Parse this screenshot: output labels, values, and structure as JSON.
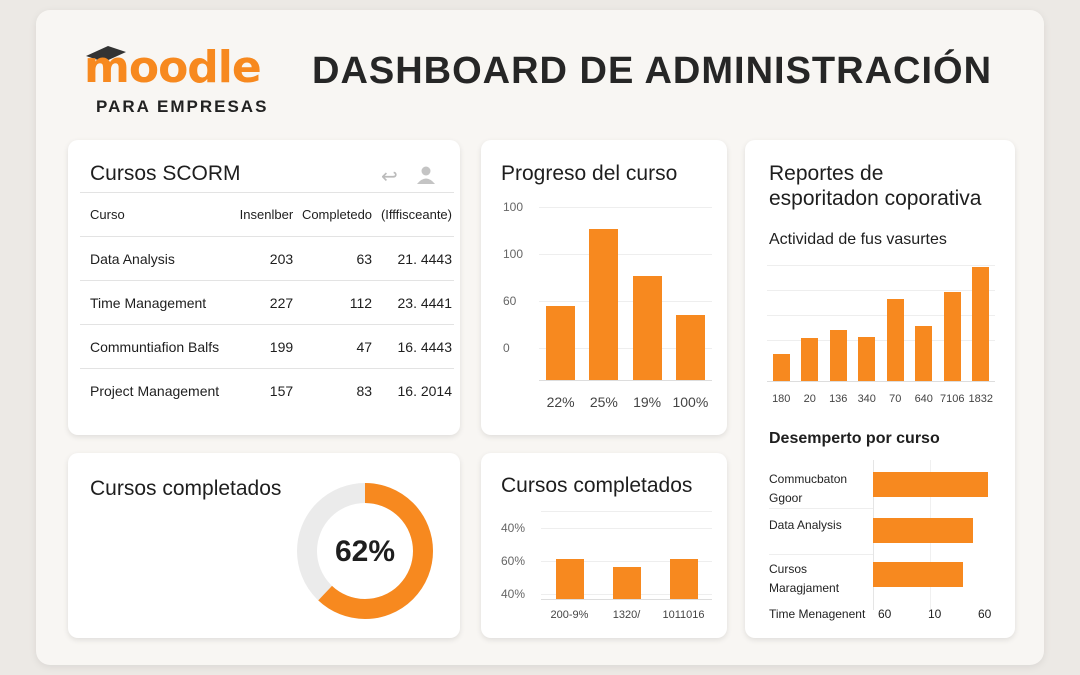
{
  "header": {
    "logo_text": "moodle",
    "logo_subtitle": "PARA EMPRESAS",
    "title": "DASHBOARD DE ADMINISTRACIÓN"
  },
  "colors": {
    "accent": "#f7891f",
    "donut_track": "#ebebeb"
  },
  "scorm": {
    "title": "Cursos SCORM",
    "icons": [
      "reply-icon",
      "user-icon"
    ],
    "columns": [
      "Curso",
      "Insenlber",
      "Completedo",
      "(Ifffisceante)"
    ],
    "rows": [
      [
        "Data Analysis",
        "203",
        "63",
        "21. 4443"
      ],
      [
        "Time Management",
        "227",
        "112",
        "23. 4441"
      ],
      [
        "Communtiafion Balfs",
        "199",
        "47",
        "16. 4443"
      ],
      [
        "Project Management",
        "157",
        "83",
        "16. 2014"
      ]
    ]
  },
  "progress": {
    "title": "Progreso del curso"
  },
  "donut": {
    "title": "Cursos completados",
    "label": "62%",
    "value": 62
  },
  "completed": {
    "title": "Cursos completados"
  },
  "reports": {
    "title_line1": "Reportes de",
    "title_line2": "esporitadon coporativa",
    "activity_title": "Actividad de fus vasurtes",
    "performance_title": "Desemperto por curso"
  },
  "chart_data": [
    {
      "type": "bar",
      "title": "Progreso del curso",
      "categories": [
        "22%",
        "25%",
        "19%",
        "100%"
      ],
      "values": [
        41,
        84,
        58,
        36
      ],
      "ylim": [
        0,
        100
      ],
      "y_tick_labels": [
        "100",
        "100",
        "60",
        "0"
      ],
      "grid": true
    },
    {
      "type": "bar",
      "title": "Cursos completados",
      "categories": [
        "200-9%",
        "1320/",
        "1011016"
      ],
      "values": [
        53,
        42,
        53
      ],
      "ylim": [
        0,
        100
      ],
      "y_tick_labels": [
        "40%",
        "60%",
        "40%"
      ],
      "grid": true
    },
    {
      "type": "bar",
      "title": "Actividad de fus vasurtes",
      "categories": [
        "180",
        "20",
        "136",
        "340",
        "70",
        "640",
        "7106",
        "1832"
      ],
      "values": [
        24,
        38,
        45,
        39,
        72,
        48,
        78,
        100
      ],
      "ylim": [
        0,
        100
      ],
      "grid": true
    },
    {
      "type": "bar",
      "orientation": "horizontal",
      "title": "Desemperto por curso",
      "categories": [
        "Commucbaton Ggoor",
        "Data Analysis",
        "Cursos Maragjament"
      ],
      "values": [
        100,
        87,
        78
      ],
      "axis_label": "Time Menagenent",
      "x_tick_labels": [
        "60",
        "10",
        "60"
      ],
      "xlim": [
        0,
        100
      ]
    }
  ]
}
